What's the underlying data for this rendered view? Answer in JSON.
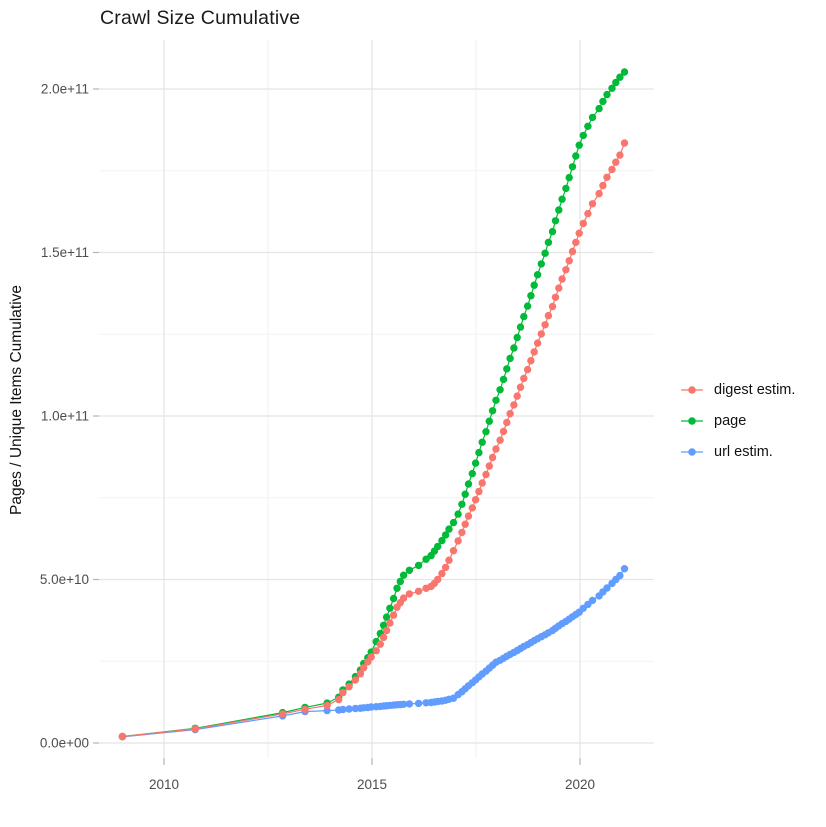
{
  "chart_data": {
    "type": "scatter",
    "title": "Crawl Size Cumulative",
    "xlabel": "",
    "ylabel": "Pages / Unique Items Cumulative",
    "value_unit": "1e9 (values below are billions)",
    "grid": true,
    "legend_position": "right",
    "x_axis": {
      "tick_values": [
        2010,
        2015,
        2020
      ],
      "tick_labels": [
        "2010",
        "2015",
        "2020"
      ],
      "minor_ticks": [
        2012.5,
        2017.5
      ],
      "range": [
        2008.6,
        2021.8
      ]
    },
    "y_axis": {
      "tick_values": [
        0,
        50,
        100,
        150,
        200
      ],
      "tick_labels": [
        "0.0e+00",
        "5.0e+10",
        "1.0e+11",
        "1.5e+11",
        "2.0e+11"
      ],
      "minor_ticks": [
        25,
        75,
        125,
        175
      ],
      "range": [
        -5,
        219
      ]
    },
    "x": [
      2009.0,
      2010.75,
      2012.85,
      2013.39,
      2013.92,
      2014.2,
      2014.3,
      2014.45,
      2014.6,
      2014.72,
      2014.8,
      2014.9,
      2014.98,
      2015.1,
      2015.2,
      2015.28,
      2015.35,
      2015.43,
      2015.52,
      2015.6,
      2015.68,
      2015.76,
      2015.9,
      2016.12,
      2016.3,
      2016.42,
      2016.5,
      2016.58,
      2016.68,
      2016.77,
      2016.85,
      2016.96,
      2017.07,
      2017.16,
      2017.24,
      2017.32,
      2017.41,
      2017.49,
      2017.57,
      2017.65,
      2017.74,
      2017.82,
      2017.9,
      2017.98,
      2018.08,
      2018.16,
      2018.24,
      2018.32,
      2018.41,
      2018.49,
      2018.57,
      2018.65,
      2018.74,
      2018.82,
      2018.9,
      2018.98,
      2019.07,
      2019.16,
      2019.24,
      2019.34,
      2019.41,
      2019.49,
      2019.57,
      2019.66,
      2019.74,
      2019.82,
      2019.9,
      2019.98,
      2020.08,
      2020.19,
      2020.3,
      2020.46,
      2020.55,
      2020.65,
      2020.77,
      2020.86,
      2020.96,
      2021.07
    ],
    "series": [
      {
        "name": "digest estim.",
        "color": "#F8766D",
        "values": [
          2.0,
          4.3,
          8.9,
          10.3,
          11.5,
          13.3,
          15.4,
          17.2,
          19.3,
          21.2,
          23.0,
          24.8,
          26.3,
          28.2,
          30.2,
          32.3,
          34.4,
          36.7,
          39.1,
          41.5,
          42.9,
          44.3,
          45.6,
          46.4,
          47.3,
          47.9,
          48.8,
          50.0,
          51.8,
          53.7,
          55.9,
          58.8,
          61.8,
          64.4,
          66.9,
          69.4,
          71.9,
          74.4,
          76.9,
          79.5,
          82.1,
          84.7,
          87.3,
          89.9,
          92.6,
          95.3,
          98.0,
          100.7,
          103.4,
          106.1,
          108.8,
          111.5,
          114.2,
          116.9,
          119.6,
          122.3,
          125.1,
          127.9,
          130.7,
          133.5,
          136.3,
          139.1,
          141.9,
          144.7,
          147.5,
          150.3,
          153.1,
          155.9,
          158.9,
          161.9,
          164.9,
          168.0,
          170.5,
          173.0,
          175.4,
          177.6,
          179.8,
          183.5
        ]
      },
      {
        "name": "page",
        "color": "#00BA38",
        "values": [
          2.0,
          4.5,
          9.3,
          10.9,
          12.2,
          14.0,
          16.2,
          18.0,
          20.3,
          22.3,
          24.3,
          26.1,
          27.8,
          31.0,
          33.5,
          36.0,
          38.5,
          41.2,
          44.2,
          47.3,
          49.4,
          51.3,
          52.8,
          54.3,
          56.2,
          57.3,
          58.7,
          60.1,
          61.9,
          63.6,
          65.4,
          67.4,
          70.0,
          73.0,
          76.1,
          79.2,
          82.4,
          85.6,
          88.8,
          92.0,
          95.2,
          98.4,
          101.6,
          104.8,
          108.0,
          111.2,
          114.4,
          117.6,
          120.8,
          124.0,
          127.2,
          130.4,
          133.6,
          136.8,
          140.0,
          143.2,
          146.5,
          149.8,
          153.1,
          156.4,
          159.7,
          163.0,
          166.3,
          169.6,
          172.9,
          176.2,
          179.5,
          182.8,
          185.8,
          188.6,
          191.3,
          194.0,
          196.2,
          198.3,
          200.2,
          202.0,
          203.6,
          205.2
        ]
      },
      {
        "name": "url estim.",
        "color": "#619CFF",
        "values": [
          1.9,
          4.1,
          8.3,
          9.6,
          9.9,
          10.1,
          10.25,
          10.4,
          10.55,
          10.65,
          10.75,
          10.85,
          11.0,
          11.1,
          11.2,
          11.3,
          11.4,
          11.5,
          11.6,
          11.7,
          11.75,
          11.85,
          11.95,
          12.1,
          12.3,
          12.4,
          12.55,
          12.7,
          12.85,
          13.05,
          13.35,
          13.7,
          14.8,
          15.7,
          16.6,
          17.5,
          18.4,
          19.3,
          20.2,
          21.1,
          22.0,
          22.9,
          23.8,
          24.7,
          25.3,
          25.9,
          26.5,
          27.1,
          27.7,
          28.3,
          28.9,
          29.5,
          30.1,
          30.7,
          31.3,
          31.9,
          32.5,
          33.1,
          33.7,
          34.4,
          35.1,
          35.8,
          36.5,
          37.2,
          37.9,
          38.6,
          39.3,
          40.0,
          41.2,
          42.4,
          43.6,
          45.0,
          46.2,
          47.4,
          48.8,
          50.0,
          51.2,
          53.3
        ]
      }
    ],
    "theme": {
      "background": "#ffffff",
      "grid_major_color": "#e4e4e4",
      "grid_minor_color": "#f2f2f2",
      "tick_mark_color": "#b3b3b3",
      "tick_label_color": "#4d4d4d",
      "title_color": "#1a1a1a"
    }
  }
}
